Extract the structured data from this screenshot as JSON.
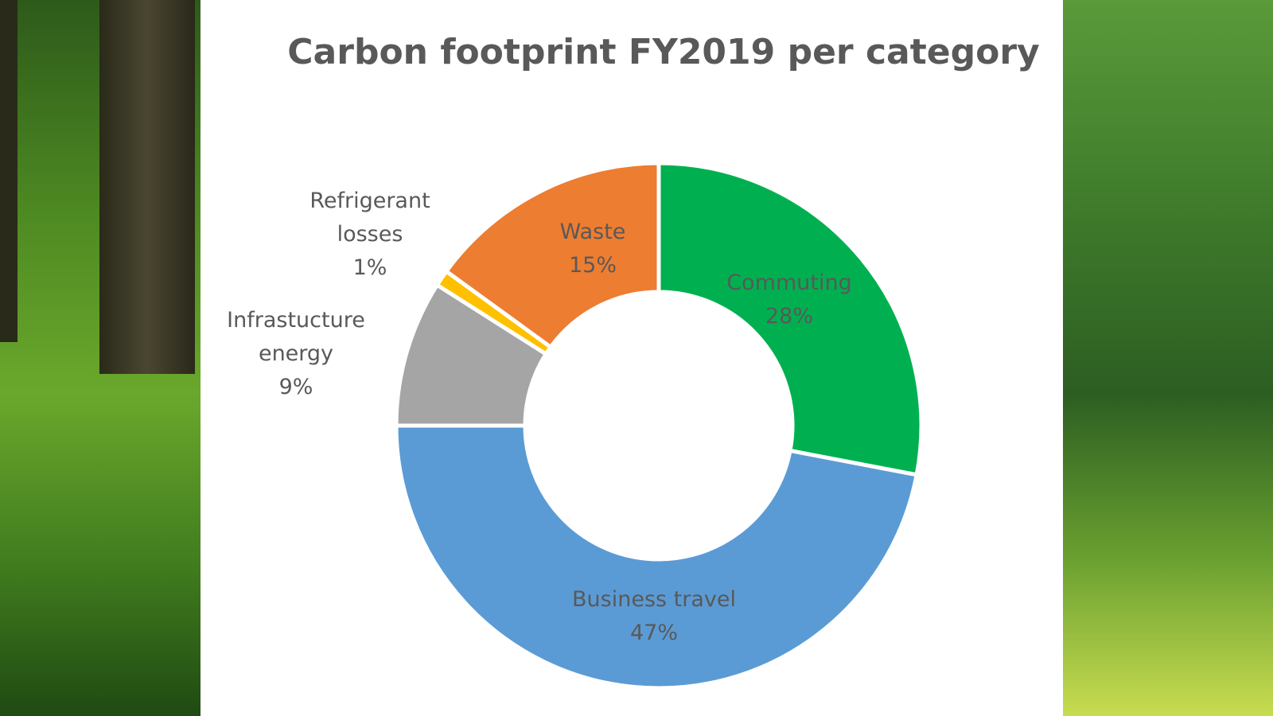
{
  "chart_data": {
    "type": "donut",
    "title": "Carbon footprint FY2019 per category",
    "categories": [
      "Commuting",
      "Business travel",
      "Infrastucture energy",
      "Refrigerant losses",
      "Waste"
    ],
    "values": [
      28,
      47,
      9,
      1,
      15
    ],
    "value_labels": [
      "28%",
      "47%",
      "9%",
      "1%",
      "15%"
    ],
    "colors": [
      "#00b050",
      "#5b9bd5",
      "#a5a5a5",
      "#ffc000",
      "#ed7d31"
    ]
  }
}
